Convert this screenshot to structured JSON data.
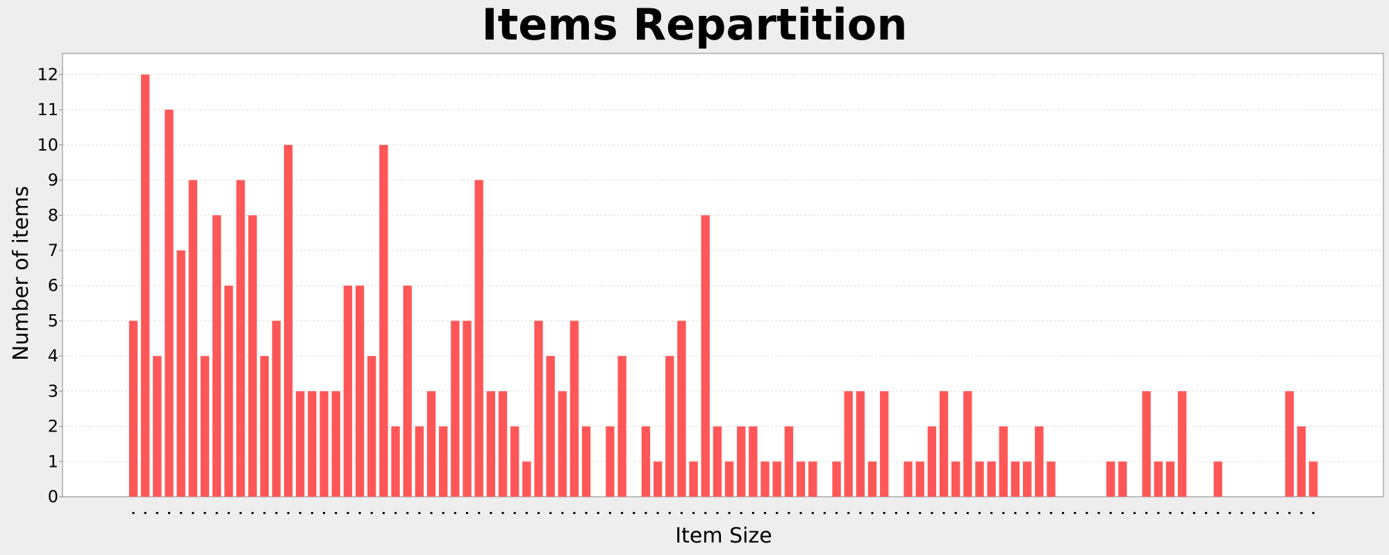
{
  "chart_data": {
    "type": "bar",
    "title": "Items Repartition",
    "xlabel": "Item Size",
    "ylabel": "Number of items",
    "ylim": [
      0,
      12.6
    ],
    "yticks": [
      0,
      1,
      2,
      3,
      4,
      5,
      6,
      7,
      8,
      9,
      10,
      11,
      12
    ],
    "grid": true,
    "bar_color": "#ff5757",
    "background_color": "#eeeeee",
    "plot_background": "#ffffff",
    "values": [
      5,
      12,
      4,
      11,
      7,
      9,
      4,
      8,
      6,
      9,
      8,
      4,
      5,
      10,
      3,
      3,
      3,
      3,
      6,
      6,
      4,
      10,
      2,
      6,
      2,
      3,
      2,
      5,
      5,
      9,
      3,
      3,
      2,
      1,
      5,
      4,
      3,
      5,
      2,
      0,
      2,
      4,
      0,
      2,
      1,
      4,
      5,
      1,
      8,
      2,
      1,
      2,
      2,
      1,
      1,
      2,
      1,
      1,
      0,
      1,
      3,
      3,
      1,
      3,
      0,
      1,
      1,
      2,
      3,
      1,
      3,
      1,
      1,
      2,
      1,
      1,
      2,
      1,
      0,
      0,
      0,
      0,
      1,
      1,
      0,
      3,
      1,
      1,
      3,
      0,
      0,
      1,
      0,
      0,
      0,
      0,
      0,
      3,
      2,
      1
    ]
  }
}
